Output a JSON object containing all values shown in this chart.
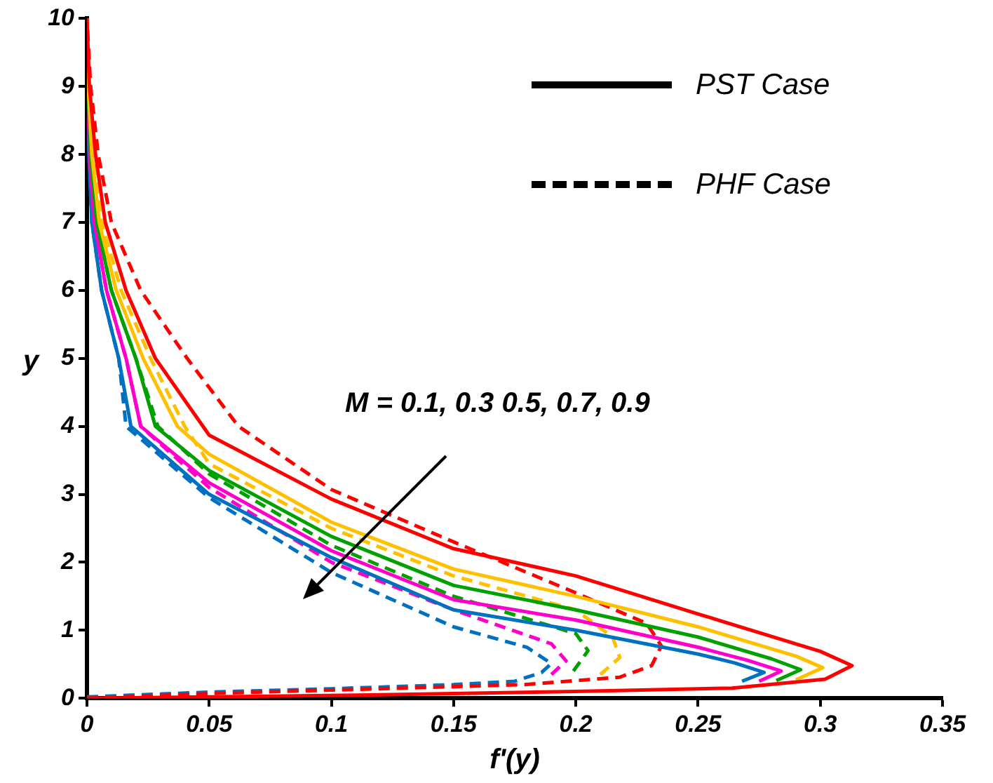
{
  "chart_data": {
    "type": "line",
    "xlabel": "f'(y)",
    "ylabel": "y",
    "xlim": [
      0,
      0.35
    ],
    "xticks": [
      0,
      0.05,
      0.1,
      0.15,
      0.2,
      0.25,
      0.3,
      0.35
    ],
    "ylim": [
      0,
      10
    ],
    "yticks": [
      0,
      1,
      2,
      3,
      4,
      5,
      6,
      7,
      8,
      9,
      10
    ],
    "marker": "none",
    "annotations": [
      "PST Case",
      "PHF Case",
      "M = 0.1, 0.3 0.5, 0.7, 0.9"
    ],
    "series": [
      {
        "color": "#ff0000",
        "line_style": "solid",
        "x": [
          0,
          0.12,
          0.2,
          0.264,
          0.302,
          0.313,
          0.3,
          0.25,
          0.2,
          0.15,
          0.1,
          0.05,
          0.028,
          0.016,
          0.0075,
          0.0035,
          0.001,
          0
        ],
        "values": [
          0,
          0.05,
          0.1,
          0.15,
          0.28,
          0.48,
          0.69,
          1.24,
          1.8,
          2.2,
          2.93,
          3.87,
          5,
          6,
          7,
          8,
          9,
          10
        ]
      },
      {
        "color": "#ffc000",
        "line_style": "solid",
        "x": [
          0.29,
          0.301,
          0.29,
          0.25,
          0.2,
          0.15,
          0.1,
          0.05,
          0.037,
          0.023,
          0.012,
          0.005,
          0.002,
          0.0005,
          0
        ],
        "values": [
          0.27,
          0.45,
          0.62,
          1.05,
          1.5,
          1.9,
          2.59,
          3.59,
          4,
          5,
          6,
          7,
          8,
          9,
          10
        ]
      },
      {
        "color": "#00a000",
        "line_style": "solid",
        "x": [
          0.282,
          0.292,
          0.28,
          0.25,
          0.2,
          0.15,
          0.1,
          0.05,
          0.028,
          0.02,
          0.01,
          0.004,
          0.0015,
          0.0004,
          0
        ],
        "values": [
          0.26,
          0.42,
          0.58,
          0.9,
          1.3,
          1.66,
          2.38,
          3.35,
          4,
          5,
          6,
          7,
          8,
          9,
          10
        ]
      },
      {
        "color": "#ff00cc",
        "line_style": "solid",
        "x": [
          0.275,
          0.284,
          0.27,
          0.25,
          0.2,
          0.15,
          0.1,
          0.05,
          0.022,
          0.016,
          0.008,
          0.003,
          0.001,
          0.0003,
          0
        ],
        "values": [
          0.25,
          0.4,
          0.56,
          0.75,
          1.15,
          1.45,
          2.17,
          3.17,
          4,
          5,
          6,
          7,
          8,
          9,
          10
        ]
      },
      {
        "color": "#0070c0",
        "line_style": "solid",
        "x": [
          0.268,
          0.277,
          0.265,
          0.25,
          0.2,
          0.15,
          0.1,
          0.05,
          0.018,
          0.013,
          0.006,
          0.002,
          0.0008,
          0.0002,
          0
        ],
        "values": [
          0.25,
          0.38,
          0.52,
          0.65,
          1,
          1.3,
          2.07,
          3,
          4,
          5,
          6,
          7,
          8,
          9,
          10
        ]
      },
      {
        "color": "#ff0000",
        "line_style": "dashed",
        "x": [
          0,
          0.05,
          0.1,
          0.15,
          0.179,
          0.218,
          0.231,
          0.235,
          0.229,
          0.2,
          0.15,
          0.1,
          0.062,
          0.041,
          0.022,
          0.01,
          0.0046,
          0.0015,
          0
        ],
        "values": [
          0,
          0.07,
          0.12,
          0.17,
          0.2,
          0.31,
          0.48,
          0.77,
          1.1,
          1.55,
          2.3,
          3.07,
          4,
          5,
          6,
          7,
          8,
          9,
          10
        ]
      },
      {
        "color": "#ffc000",
        "line_style": "dashed",
        "x": [
          0.21,
          0.218,
          0.215,
          0.2,
          0.15,
          0.1,
          0.05,
          0.04,
          0.026,
          0.014,
          0.006,
          0.0025,
          0.0008,
          0
        ],
        "values": [
          0.35,
          0.6,
          0.9,
          1.3,
          1.8,
          2.5,
          3.45,
          4,
          5,
          6,
          7,
          8,
          9,
          10
        ]
      },
      {
        "color": "#00a000",
        "line_style": "dashed",
        "x": [
          0.199,
          0.205,
          0.2,
          0.15,
          0.1,
          0.05,
          0.029,
          0.02,
          0.01,
          0.004,
          0.0015,
          0.0004,
          0
        ],
        "values": [
          0.4,
          0.7,
          0.95,
          1.5,
          2.25,
          3.3,
          4,
          5,
          6,
          7,
          8,
          9,
          10
        ]
      },
      {
        "color": "#ff00cc",
        "line_style": "dashed",
        "x": [
          0.19,
          0.196,
          0.19,
          0.15,
          0.1,
          0.05,
          0.022,
          0.016,
          0.008,
          0.003,
          0.001,
          0.0003,
          0
        ],
        "values": [
          0.35,
          0.55,
          0.8,
          1.3,
          2,
          3.1,
          4,
          5,
          6,
          7,
          8,
          9,
          10
        ]
      },
      {
        "color": "#0070c0",
        "line_style": "dashed",
        "x": [
          0,
          0.05,
          0.1,
          0.15,
          0.175,
          0.186,
          0.19,
          0.18,
          0.15,
          0.1,
          0.05,
          0.016,
          0.013,
          0.006,
          0.002,
          0.0008,
          0.0002,
          0
        ],
        "values": [
          0.02,
          0.09,
          0.14,
          0.2,
          0.25,
          0.38,
          0.51,
          0.75,
          1.05,
          1.85,
          2.95,
          4,
          5,
          6,
          7,
          8,
          9,
          10
        ]
      }
    ]
  }
}
